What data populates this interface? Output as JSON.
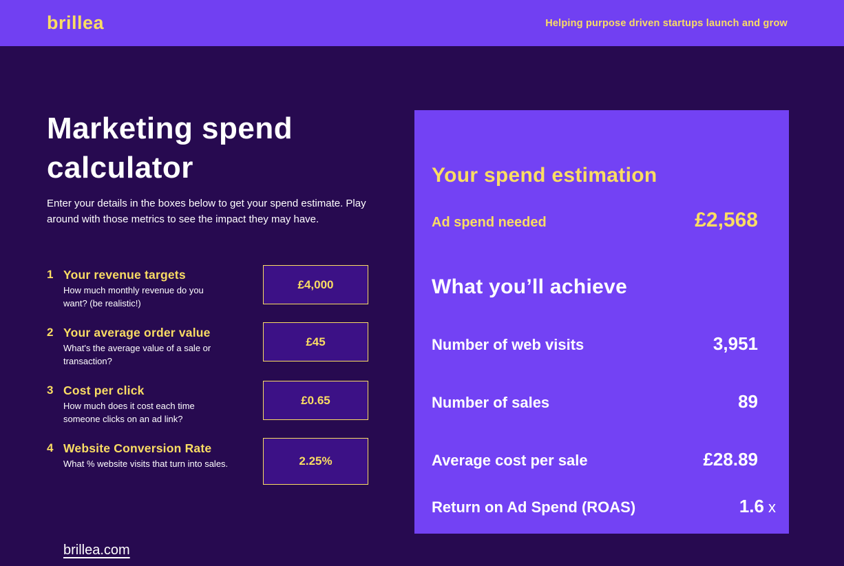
{
  "header": {
    "logo": "brillea",
    "tagline": "Helping purpose driven startups launch and grow"
  },
  "intro": {
    "title": "Marketing spend calculator",
    "description": "Enter your details in the boxes below to get your spend estimate. Play around with those metrics to see the impact they may have."
  },
  "inputs": [
    {
      "number": "1",
      "label": "Your revenue targets",
      "description": "How much monthly revenue do you want? (be realistic!)",
      "value": "£4,000"
    },
    {
      "number": "2",
      "label": "Your average order value",
      "description": "What's the average value of a sale or transaction?",
      "value": "£45"
    },
    {
      "number": "3",
      "label": "Cost per click",
      "description": "How much does it cost each time someone clicks on an ad link?",
      "value": "£0.65"
    },
    {
      "number": "4",
      "label": "Website Conversion Rate",
      "description": "What % website visits that turn into sales.",
      "value": "2.25%"
    }
  ],
  "results": {
    "title": "Your spend estimation",
    "ad_spend_label": "Ad spend needed",
    "ad_spend_value": "£2,568",
    "achieve_title": "What you’ll achieve",
    "rows": [
      {
        "label": "Number of web visits",
        "value": "3,951",
        "suffix": ""
      },
      {
        "label": "Number of sales",
        "value": "89",
        "suffix": ""
      },
      {
        "label": "Average cost per sale",
        "value": "£28.89",
        "suffix": ""
      },
      {
        "label": "Return on Ad Spend (ROAS)",
        "value": "1.6",
        "suffix": "x"
      }
    ]
  },
  "footer": {
    "link": "brillea.com"
  },
  "colors": {
    "header_bg": "#7140F2",
    "page_bg": "#270A50",
    "panel_bg": "#7342F4",
    "input_bg": "#3C1186",
    "accent_yellow": "#FADD63",
    "text_white": "#FFFFFF"
  }
}
